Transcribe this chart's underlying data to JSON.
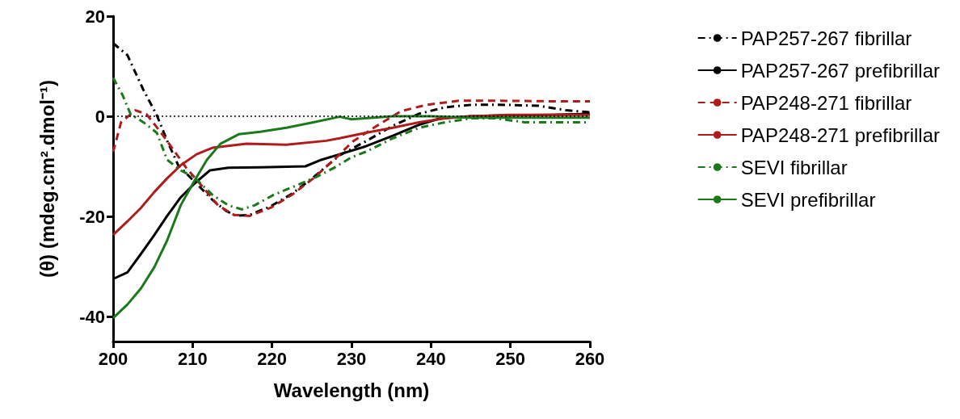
{
  "chart_data": {
    "type": "line",
    "xlabel": "Wavelength (nm)",
    "ylabel": "(θ) (mdeg.cm².dmol⁻¹)",
    "xlim": [
      200,
      260
    ],
    "xticks": [
      200,
      210,
      220,
      230,
      240,
      250,
      260
    ],
    "ylim": [
      -45,
      20
    ],
    "yticks": [
      20,
      0,
      -20,
      -40
    ],
    "grid": false,
    "legend": "right",
    "marker": "none",
    "ref_lines": [
      {
        "axis": "y",
        "value": 0,
        "color": "#000000",
        "line_style": "dotted"
      }
    ],
    "series": [
      {
        "name": "PAP257-267 fibrillar",
        "color": "#000000",
        "line_style": "dashdot",
        "x": [
          200,
          201.8,
          203.8,
          205.5,
          206.8,
          208.2,
          210.2,
          212.5,
          214.2,
          215.5,
          217.2,
          219.8,
          222.5,
          225.2,
          228.5,
          231.8,
          235.2,
          238.5,
          241.8,
          245.2,
          248.5,
          253.5,
          257,
          260
        ],
        "values": [
          14.6,
          12.2,
          5.3,
          0.2,
          -4.9,
          -9.8,
          -13,
          -16.7,
          -18.9,
          -19.9,
          -19.7,
          -18,
          -15.5,
          -12.2,
          -7.8,
          -5,
          -1.9,
          0.5,
          1.8,
          2.3,
          2.3,
          2.1,
          1.2,
          0.8
        ]
      },
      {
        "name": "PAP257-267 prefibrillar",
        "color": "#000000",
        "line_style": "solid",
        "x": [
          200,
          201.8,
          203.5,
          205.2,
          206.8,
          208.5,
          210.2,
          212.2,
          214.5,
          218.5,
          224.2,
          226.2,
          228.5,
          231.8,
          235.2,
          238.5,
          241.2,
          245,
          250,
          255,
          260
        ],
        "values": [
          -32.5,
          -31.2,
          -27.5,
          -23.7,
          -19.9,
          -16.2,
          -13.5,
          -10.8,
          -10.3,
          -10.2,
          -10,
          -8.7,
          -7.6,
          -6,
          -3.9,
          -1.7,
          -0.4,
          0,
          0.2,
          0.3,
          0.5
        ]
      },
      {
        "name": "PAP248-271 fibrillar",
        "color": "#b01c1c",
        "line_style": "dashed",
        "x": [
          200,
          201,
          202.8,
          204.2,
          205.8,
          207.5,
          209.2,
          211.2,
          213.2,
          215.2,
          217.2,
          219.8,
          222.5,
          225.2,
          227.8,
          230.2,
          232.8,
          236.2,
          239.5,
          243.5,
          248.5,
          255,
          260
        ],
        "values": [
          -7.1,
          -1.2,
          1.2,
          0.4,
          -2.8,
          -6.5,
          -10.3,
          -14,
          -17.8,
          -19.7,
          -19.9,
          -18.3,
          -15.7,
          -12.4,
          -8.7,
          -5,
          -2.3,
          1,
          2.3,
          3.1,
          3.1,
          3,
          3
        ]
      },
      {
        "name": "PAP248-271 prefibrillar",
        "color": "#b01c1c",
        "line_style": "solid",
        "x": [
          200,
          201.8,
          203.5,
          205.2,
          206.8,
          208.5,
          210.5,
          212.5,
          216.8,
          221.8,
          226.8,
          228.5,
          231.8,
          235.2,
          238.5,
          241.8,
          245,
          250,
          255,
          260
        ],
        "values": [
          -23.7,
          -21,
          -18.3,
          -15.1,
          -12.4,
          -9.8,
          -7.6,
          -6.3,
          -5.5,
          -5.7,
          -4.9,
          -4.4,
          -3.3,
          -2.3,
          -1.2,
          -0.4,
          0,
          0.3,
          0.3,
          0.3
        ]
      },
      {
        "name": "SEVI fibrillar",
        "color": "#1a7a1a",
        "line_style": "dashdot",
        "x": [
          200,
          201.2,
          202.2,
          203.8,
          205.5,
          206.8,
          208.5,
          210.2,
          212.5,
          214.5,
          216.2,
          217.8,
          220.2,
          222.8,
          225.5,
          227.8,
          230,
          231.8,
          235.2,
          238.5,
          241.8,
          245.2,
          248,
          251.8,
          255,
          260
        ],
        "values": [
          7.7,
          4.2,
          0.4,
          -1.2,
          -3.3,
          -8.7,
          -10.8,
          -12.2,
          -15.7,
          -17.8,
          -18.6,
          -17.8,
          -15.7,
          -14,
          -12.2,
          -10.3,
          -8.2,
          -7.1,
          -4.4,
          -2.3,
          -1.2,
          -0.4,
          -0.4,
          -1.2,
          -1.2,
          -1.2
        ]
      },
      {
        "name": "SEVI prefibrillar",
        "color": "#1a7a1a",
        "line_style": "solid",
        "x": [
          200,
          201.8,
          203.5,
          205.2,
          206.8,
          208.5,
          210.2,
          211.8,
          213.5,
          215.8,
          218.5,
          221.8,
          225.2,
          228.5,
          230,
          235.2,
          240,
          245,
          250,
          255,
          260
        ],
        "values": [
          -40.3,
          -37.6,
          -34.4,
          -30.1,
          -24.8,
          -17.8,
          -13,
          -8.7,
          -5.5,
          -3.6,
          -3.1,
          -2.3,
          -1.2,
          -0.1,
          -0.6,
          0,
          0,
          -0.3,
          -0.3,
          -0.3,
          -0.3
        ]
      }
    ]
  }
}
